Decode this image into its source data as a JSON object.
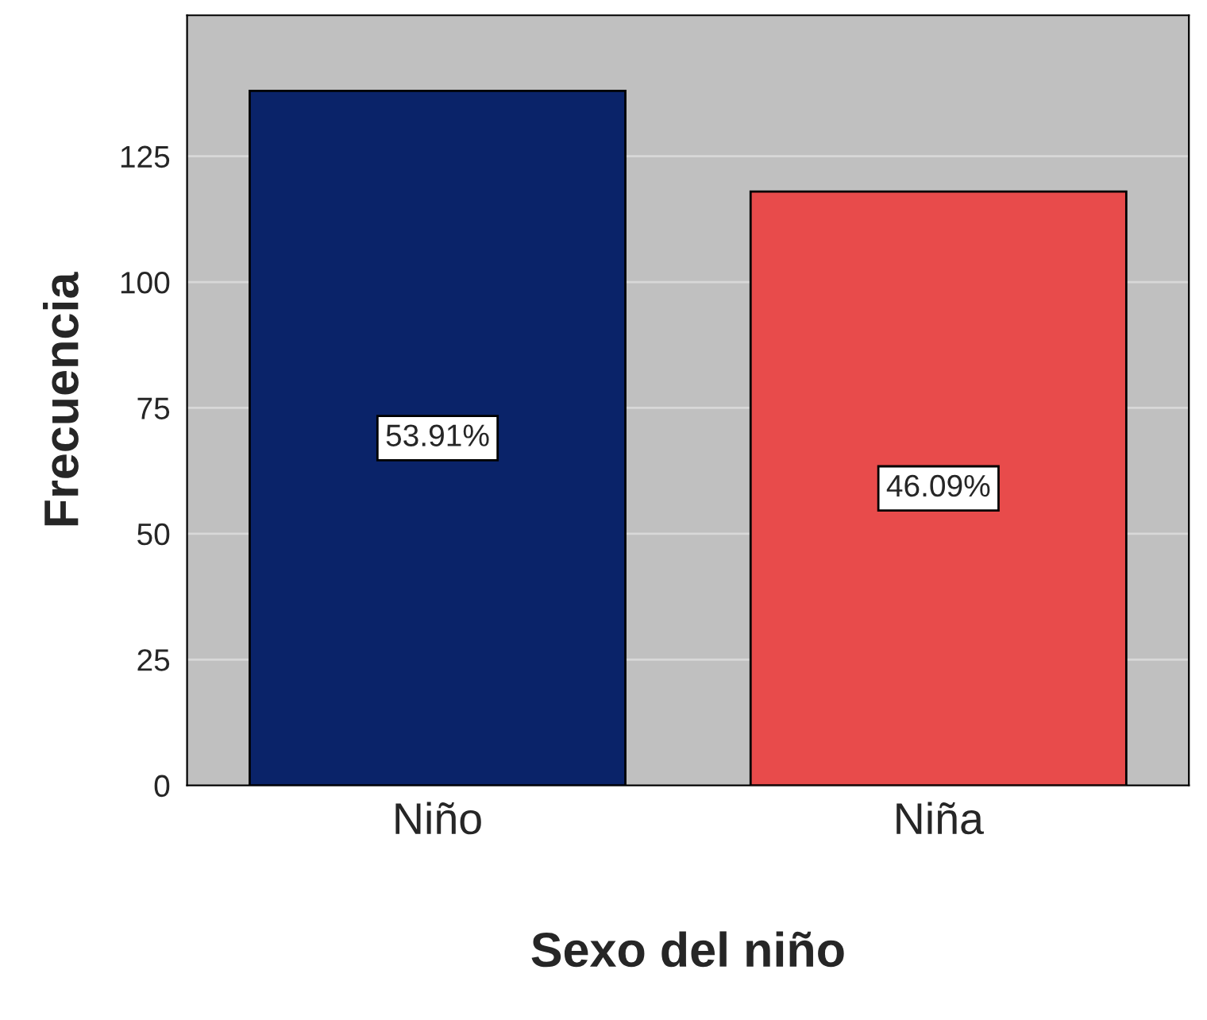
{
  "chart_data": {
    "type": "bar",
    "xlabel": "Sexo del niño",
    "ylabel": "Frecuencia",
    "categories": [
      "Niño",
      "Niña"
    ],
    "values": [
      138,
      118
    ],
    "colors": [
      "#0a2369",
      "#e84b4b"
    ],
    "annotations": [
      "53.91%",
      "46.09%"
    ],
    "ylim": [
      0,
      153
    ],
    "yticks": [
      0,
      25,
      50,
      75,
      100,
      125
    ],
    "grid": "y",
    "legend": false
  }
}
